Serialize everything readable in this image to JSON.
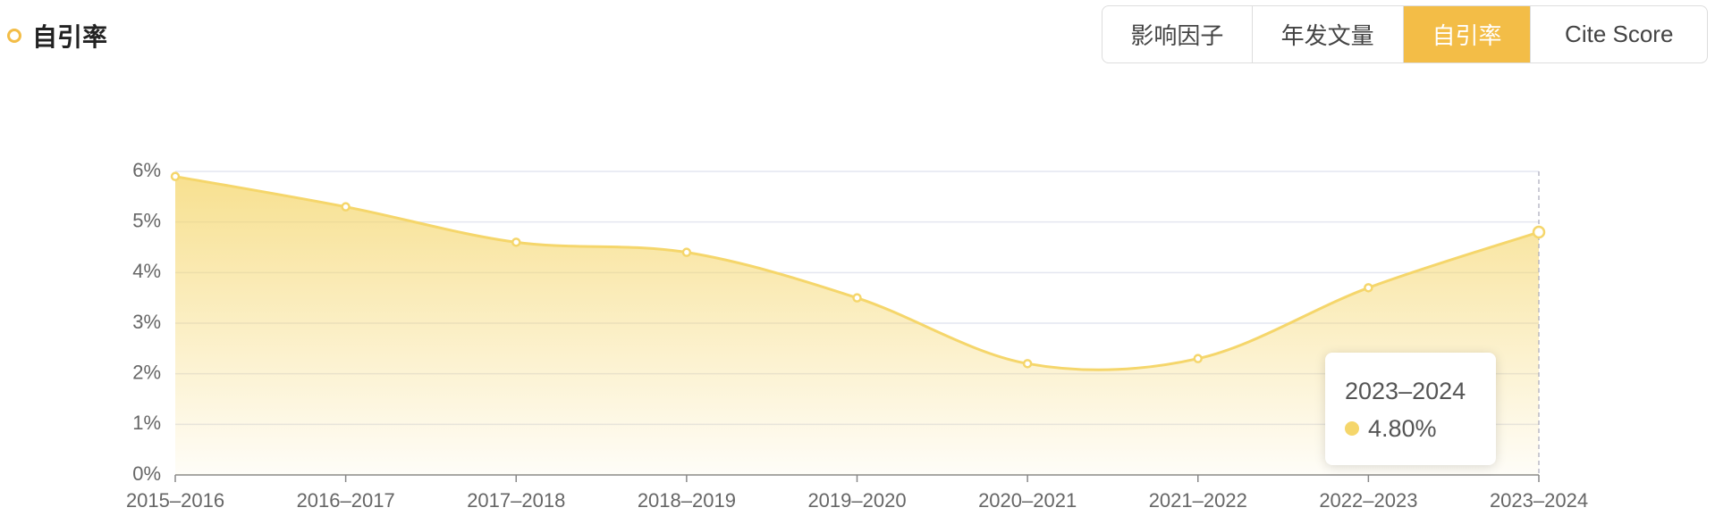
{
  "header": {
    "title": "自引率"
  },
  "tabs": {
    "items": [
      "影响因子",
      "年发文量",
      "自引率",
      "Cite Score"
    ],
    "active": 2
  },
  "chart_data": {
    "type": "area",
    "categories": [
      "2015–2016",
      "2016–2017",
      "2017–2018",
      "2018–2019",
      "2019–2020",
      "2020–2021",
      "2021–2022",
      "2022–2023",
      "2023–2024"
    ],
    "values": [
      5.9,
      5.3,
      4.6,
      4.4,
      3.5,
      2.2,
      2.3,
      3.7,
      4.8
    ],
    "value_labels": [
      null,
      null,
      null,
      null,
      null,
      null,
      null,
      null,
      "4.80%"
    ],
    "color": "#f5d66b",
    "ylim": [
      0,
      6
    ],
    "yticks": [
      {
        "value": 0,
        "label": "0%"
      },
      {
        "value": 1,
        "label": "1%"
      },
      {
        "value": 2,
        "label": "2%"
      },
      {
        "value": 3,
        "label": "3%"
      },
      {
        "value": 4,
        "label": "4%"
      },
      {
        "value": 5,
        "label": "5%"
      },
      {
        "value": 6,
        "label": "6%"
      }
    ],
    "grid": true
  }
}
